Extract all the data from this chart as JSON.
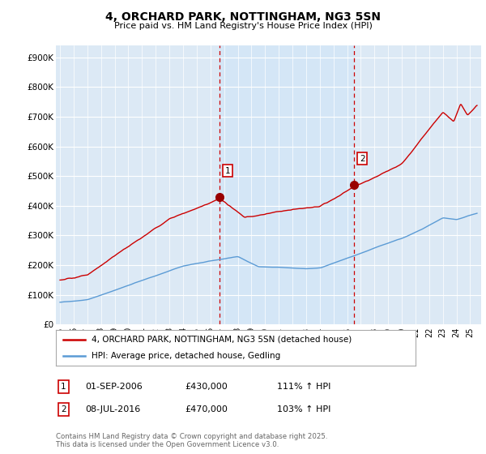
{
  "title": "4, ORCHARD PARK, NOTTINGHAM, NG3 5SN",
  "subtitle": "Price paid vs. HM Land Registry's House Price Index (HPI)",
  "ylabel_ticks": [
    "£0",
    "£100K",
    "£200K",
    "£300K",
    "£400K",
    "£500K",
    "£600K",
    "£700K",
    "£800K",
    "£900K"
  ],
  "ytick_values": [
    0,
    100000,
    200000,
    300000,
    400000,
    500000,
    600000,
    700000,
    800000,
    900000
  ],
  "ylim": [
    0,
    940000
  ],
  "xlim_start": 1994.7,
  "xlim_end": 2025.8,
  "red_line_color": "#cc0000",
  "blue_line_color": "#5b9bd5",
  "marker_color": "#990000",
  "vline_color": "#cc0000",
  "shade_color": "#d0e4f7",
  "plot_bg_color": "#dce9f5",
  "fig_bg_color": "#ffffff",
  "grid_color": "#ffffff",
  "marker1_x": 2006.67,
  "marker1_y": 430000,
  "marker2_x": 2016.52,
  "marker2_y": 470000,
  "legend_line1": "4, ORCHARD PARK, NOTTINGHAM, NG3 5SN (detached house)",
  "legend_line2": "HPI: Average price, detached house, Gedling",
  "note1_label": "1",
  "note1_date": "01-SEP-2006",
  "note1_price": "£430,000",
  "note1_hpi": "111% ↑ HPI",
  "note2_label": "2",
  "note2_date": "08-JUL-2016",
  "note2_price": "£470,000",
  "note2_hpi": "103% ↑ HPI",
  "footer": "Contains HM Land Registry data © Crown copyright and database right 2025.\nThis data is licensed under the Open Government Licence v3.0."
}
